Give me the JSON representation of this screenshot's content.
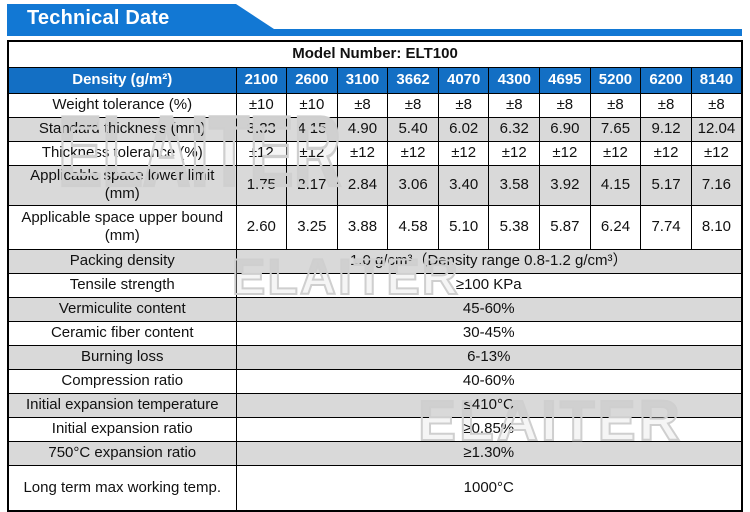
{
  "banner": {
    "title": "Technical Date"
  },
  "colors": {
    "banner_blue": "#1278D4",
    "header_row_blue": "#136FC4",
    "model_text_blue": "#1277D4",
    "shaded_row_gray": "#D9D9D9",
    "watermark_gray": "#CFCFCF"
  },
  "watermark_text": "ELAITER",
  "table": {
    "model_number_label": "Model Number: ELT100",
    "density_row": {
      "label": "Density (g/m²)",
      "values": [
        "2100",
        "2600",
        "3100",
        "3662",
        "4070",
        "4300",
        "4695",
        "5200",
        "6200",
        "8140"
      ]
    },
    "rows": [
      {
        "label": "Weight tolerance (%)",
        "shaded": false,
        "values": [
          "±10",
          "±10",
          "±8",
          "±8",
          "±8",
          "±8",
          "±8",
          "±8",
          "±8",
          "±8"
        ]
      },
      {
        "label": "Standard thickness (mm)",
        "shaded": true,
        "values": [
          "3.33",
          "4.15",
          "4.90",
          "5.40",
          "6.02",
          "6.32",
          "6.90",
          "7.65",
          "9.12",
          "12.04"
        ]
      },
      {
        "label": "Thickness tolerance (%)",
        "shaded": false,
        "values": [
          "±12",
          "±12",
          "±12",
          "±12",
          "±12",
          "±12",
          "±12",
          "±12",
          "±12",
          "±12"
        ]
      },
      {
        "label": "Applicable space lower limit (mm)",
        "shaded": true,
        "values": [
          "1.75",
          "2.17",
          "2.84",
          "3.06",
          "3.40",
          "3.58",
          "3.92",
          "4.15",
          "5.17",
          "7.16"
        ]
      },
      {
        "label": "Applicable space upper bound (mm)",
        "shaded": false,
        "values": [
          "2.60",
          "3.25",
          "3.88",
          "4.58",
          "5.10",
          "5.38",
          "5.87",
          "6.24",
          "7.74",
          "8.10"
        ]
      },
      {
        "label": "Packing density",
        "shaded": true,
        "span_value": "1.0 g/cm³（Density range 0.8-1.2 g/cm³）"
      },
      {
        "label": "Tensile strength",
        "shaded": false,
        "span_value": "≥100 KPa"
      },
      {
        "label": "Vermiculite content",
        "shaded": true,
        "span_value": "45-60%"
      },
      {
        "label": "Ceramic fiber content",
        "shaded": false,
        "span_value": "30-45%"
      },
      {
        "label": "Burning loss",
        "shaded": true,
        "span_value": "6-13%"
      },
      {
        "label": "Compression ratio",
        "shaded": false,
        "span_value": "40-60%"
      },
      {
        "label": "Initial expansion temperature",
        "shaded": true,
        "span_value": "≤410°C"
      },
      {
        "label": "Initial expansion ratio",
        "shaded": false,
        "span_value": "≥0.85%"
      },
      {
        "label": "750°C expansion ratio",
        "shaded": true,
        "span_value": "≥1.30%"
      },
      {
        "label": "Long term max working temp.",
        "shaded": false,
        "span_value": "1000°C"
      }
    ]
  }
}
